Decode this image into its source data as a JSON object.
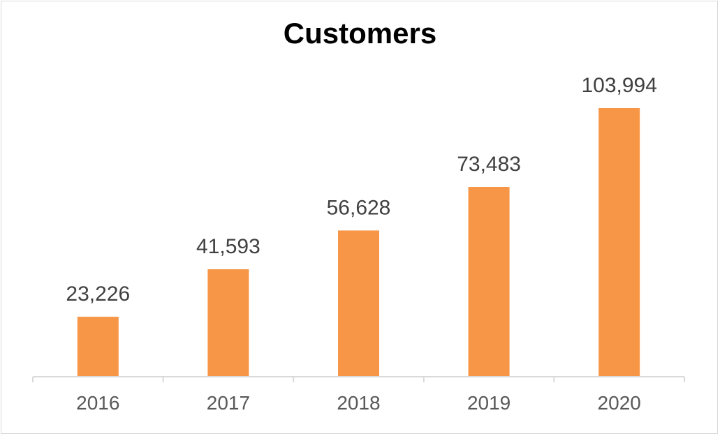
{
  "chart_data": {
    "type": "bar",
    "title": "Customers",
    "categories": [
      "2016",
      "2017",
      "2018",
      "2019",
      "2020"
    ],
    "values": [
      23226,
      41593,
      56628,
      73483,
      103994
    ],
    "data_labels": [
      "23,226",
      "41,593",
      "56,628",
      "73,483",
      "103,994"
    ],
    "xlabel": "",
    "ylabel": "",
    "ylim": [
      0,
      114000
    ],
    "grid": false,
    "legend": "none",
    "bar_color": "#F79646",
    "axis_color": "#d9d9d9"
  }
}
